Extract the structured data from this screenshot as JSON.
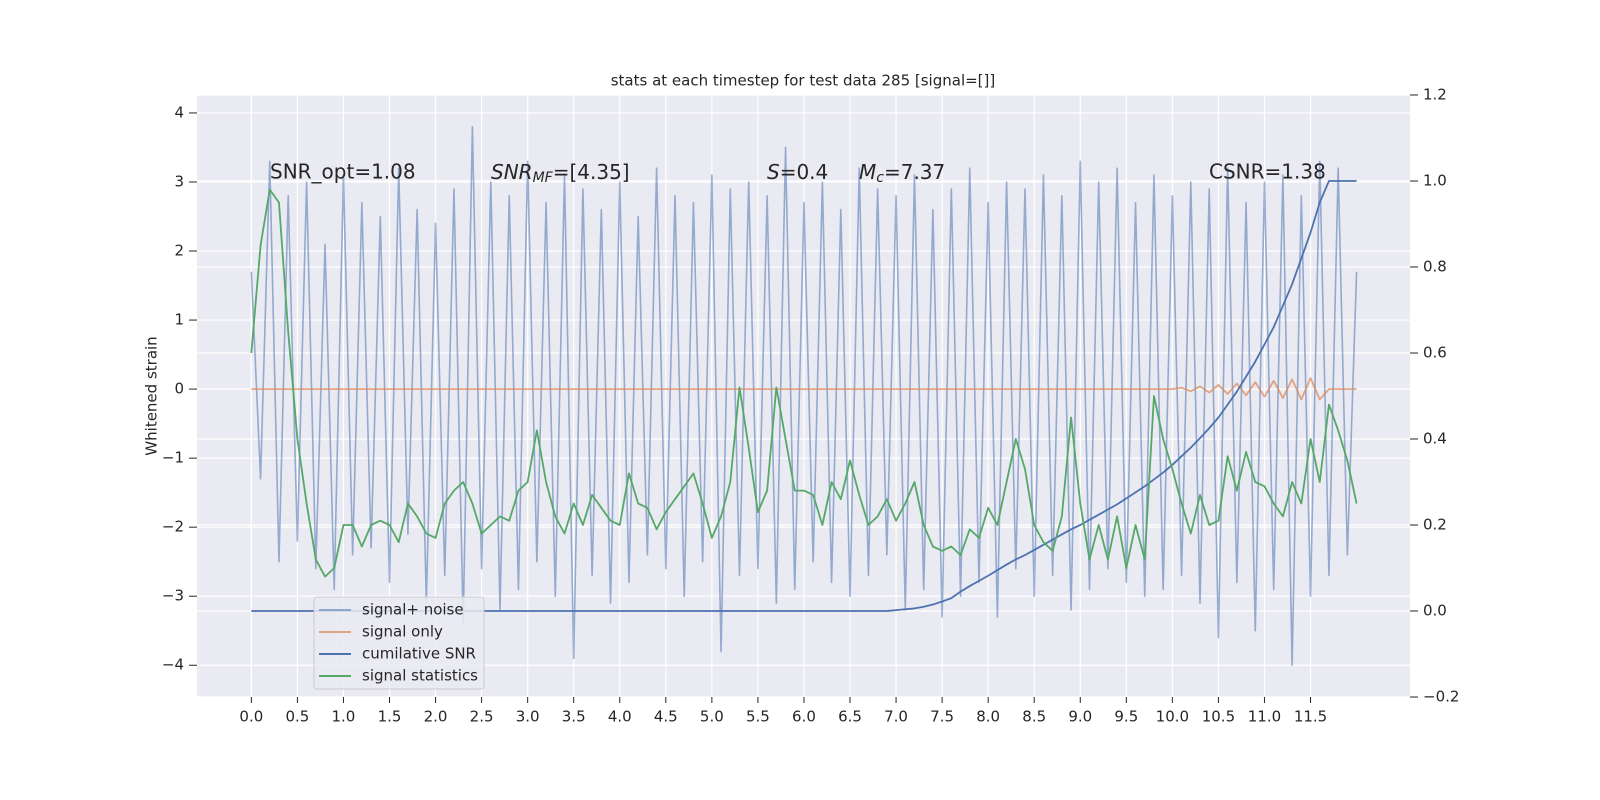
{
  "chart_data": {
    "type": "line",
    "title": "stats at each timestep for test data 285 [signal=[]]",
    "ylabel": "Whitened strain",
    "annotations": [
      "SNR_opt=1.08",
      [
        "SNR",
        "MF",
        "=[4.35]"
      ],
      [
        "S",
        "=0.4"
      ],
      [
        "M",
        "c",
        "=7.37"
      ],
      "CSNR=1.38"
    ],
    "xlim": [
      -0.59,
      12.58
    ],
    "ylim": [
      -4.46,
      4.26
    ],
    "y2lim": [
      -0.2,
      1.2
    ],
    "xticks": [
      {
        "value": 0,
        "label": "0.0"
      },
      0.5,
      {
        "value": 1,
        "label": "1.0"
      },
      1.5,
      {
        "value": 2,
        "label": "2.0"
      },
      2.5,
      {
        "value": 3,
        "label": "3.0"
      },
      3.5,
      {
        "value": 4,
        "label": "4.0"
      },
      4.5,
      {
        "value": 5,
        "label": "5.0"
      },
      5.5,
      {
        "value": 6,
        "label": "6.0"
      },
      6.5,
      {
        "value": 7,
        "label": "7.0"
      },
      7.5,
      {
        "value": 8,
        "label": "8.0"
      },
      8.5,
      {
        "value": 9,
        "label": "9.0"
      },
      9.5,
      {
        "value": 10,
        "label": "10.0"
      },
      10.5,
      {
        "value": 11,
        "label": "11.0"
      },
      11.5
    ],
    "yticks": [
      {
        "value": -4,
        "label": "−4"
      },
      {
        "value": -3,
        "label": "−3"
      },
      {
        "value": -2,
        "label": "−2"
      },
      {
        "value": -1,
        "label": "−1"
      },
      0,
      1,
      2,
      3,
      4
    ],
    "y2ticks": [
      {
        "value": -0.2,
        "label": "−0.2"
      },
      {
        "value": 0,
        "label": "0.0"
      },
      0.2,
      0.4,
      0.6,
      0.8,
      {
        "value": 1,
        "label": "1.0"
      },
      1.2
    ],
    "grid": true,
    "legend": "lower left",
    "x": [
      0,
      0.1,
      0.2,
      0.3,
      0.4,
      0.5,
      0.6,
      0.7,
      0.8,
      0.9,
      1.0,
      1.1,
      1.2,
      1.3,
      1.4,
      1.5,
      1.6,
      1.7,
      1.8,
      1.9,
      2.0,
      2.1,
      2.2,
      2.3,
      2.4,
      2.5,
      2.6,
      2.7,
      2.8,
      2.9,
      3.0,
      3.1,
      3.2,
      3.3,
      3.4,
      3.5,
      3.6,
      3.7,
      3.8,
      3.9,
      4.0,
      4.1,
      4.2,
      4.3,
      4.4,
      4.5,
      4.6,
      4.7,
      4.8,
      4.9,
      5.0,
      5.1,
      5.2,
      5.3,
      5.4,
      5.5,
      5.6,
      5.7,
      5.8,
      5.9,
      6.0,
      6.1,
      6.2,
      6.3,
      6.4,
      6.5,
      6.6,
      6.7,
      6.8,
      6.9,
      7.0,
      7.1,
      7.2,
      7.3,
      7.4,
      7.5,
      7.6,
      7.7,
      7.8,
      7.9,
      8.0,
      8.1,
      8.2,
      8.3,
      8.4,
      8.5,
      8.6,
      8.7,
      8.8,
      8.9,
      9.0,
      9.1,
      9.2,
      9.3,
      9.4,
      9.5,
      9.6,
      9.7,
      9.8,
      9.9,
      10.0,
      10.1,
      10.2,
      10.3,
      10.4,
      10.5,
      10.6,
      10.7,
      10.8,
      10.9,
      11.0,
      11.1,
      11.2,
      11.3,
      11.4,
      11.5,
      11.6,
      11.7,
      11.8,
      11.9,
      12.0
    ],
    "series": [
      {
        "name": "signal+ noise",
        "color": "#4c72b0",
        "opacity": 0.55,
        "values": [
          1.7,
          -1.3,
          3.3,
          -2.5,
          2.8,
          -2.2,
          3.0,
          -2.6,
          2.1,
          -2.9,
          3.1,
          -2.4,
          2.7,
          -2.3,
          2.5,
          -2.8,
          3.2,
          -2.1,
          2.6,
          -3.1,
          2.4,
          -2.7,
          2.9,
          -3.4,
          3.8,
          -2.6,
          3.0,
          -3.2,
          2.8,
          -2.9,
          3.3,
          -2.5,
          2.7,
          -3.0,
          3.1,
          -3.9,
          2.9,
          -2.7,
          2.6,
          -3.1,
          3.0,
          -2.8,
          2.5,
          -2.4,
          3.2,
          -2.6,
          2.8,
          -3.0,
          2.7,
          -2.5,
          3.1,
          -3.8,
          2.9,
          -2.7,
          3.0,
          -2.6,
          2.8,
          -3.1,
          3.5,
          -2.9,
          2.7,
          -2.5,
          3.0,
          -2.8,
          2.6,
          -3.0,
          3.2,
          -2.7,
          2.9,
          -2.4,
          2.8,
          -3.2,
          3.1,
          -2.9,
          2.6,
          -3.3,
          2.9,
          -3.0,
          3.2,
          -2.8,
          2.7,
          -3.3,
          3.0,
          -2.6,
          2.9,
          -3.0,
          3.1,
          -2.7,
          2.8,
          -3.2,
          3.3,
          -2.9,
          3.0,
          -2.6,
          3.2,
          -2.8,
          2.7,
          -3.0,
          3.1,
          -2.9,
          2.8,
          -2.7,
          3.0,
          -3.1,
          2.9,
          -3.6,
          3.2,
          -2.8,
          2.7,
          -3.5,
          3.0,
          -2.9,
          3.1,
          -4.0,
          2.8,
          -3.0,
          3.3,
          -2.7,
          3.2,
          -2.4,
          1.7
        ]
      },
      {
        "name": "signal only",
        "color": "#dd8452",
        "opacity": 0.7,
        "values": [
          0,
          0,
          0,
          0,
          0,
          0,
          0,
          0,
          0,
          0,
          0,
          0,
          0,
          0,
          0,
          0,
          0,
          0,
          0,
          0,
          0,
          0,
          0,
          0,
          0,
          0,
          0,
          0,
          0,
          0,
          0,
          0,
          0,
          0,
          0,
          0,
          0,
          0,
          0,
          0,
          0,
          0,
          0,
          0,
          0,
          0,
          0,
          0,
          0,
          0,
          0,
          0,
          0,
          0,
          0,
          0,
          0,
          0,
          0,
          0,
          0,
          0,
          0,
          0,
          0,
          0,
          0,
          0,
          0,
          0,
          0,
          0,
          0,
          0,
          0,
          0,
          0,
          0,
          0,
          0,
          0,
          0,
          0,
          0,
          0,
          0,
          0,
          0,
          0,
          0,
          0,
          0,
          0,
          0,
          0,
          0,
          0,
          0,
          0,
          0,
          0,
          0.02,
          -0.03,
          0.04,
          -0.05,
          0.06,
          -0.07,
          0.08,
          -0.09,
          0.1,
          -0.11,
          0.12,
          -0.13,
          0.14,
          -0.15,
          0.16,
          -0.15,
          0,
          0,
          0,
          0
        ]
      },
      {
        "name": "cumilative SNR",
        "color": "#4c72b0",
        "opacity": 1,
        "axis": "y2",
        "values": [
          0,
          0,
          0,
          0,
          0,
          0,
          0,
          0,
          0,
          0,
          0,
          0,
          0,
          0,
          0,
          0,
          0,
          0,
          0,
          0,
          0,
          0,
          0,
          0,
          0,
          0,
          0,
          0,
          0,
          0,
          0,
          0,
          0,
          0,
          0,
          0,
          0,
          0,
          0,
          0,
          0,
          0,
          0,
          0,
          0,
          0,
          0,
          0,
          0,
          0,
          0,
          0,
          0,
          0,
          0,
          0,
          0,
          0,
          0,
          0,
          0,
          0,
          0,
          0,
          0,
          0,
          0,
          0,
          0,
          0,
          0.002,
          0.004,
          0.006,
          0.01,
          0.015,
          0.022,
          0.03,
          0.045,
          0.058,
          0.07,
          0.082,
          0.095,
          0.108,
          0.12,
          0.13,
          0.142,
          0.154,
          0.166,
          0.178,
          0.19,
          0.2,
          0.212,
          0.224,
          0.236,
          0.248,
          0.262,
          0.276,
          0.29,
          0.306,
          0.322,
          0.34,
          0.36,
          0.38,
          0.402,
          0.425,
          0.45,
          0.48,
          0.51,
          0.545,
          0.58,
          0.62,
          0.66,
          0.71,
          0.76,
          0.82,
          0.88,
          0.95,
          1.0,
          1.0,
          1.0,
          1.0
        ]
      },
      {
        "name": "signal statistics",
        "color": "#55a868",
        "opacity": 1,
        "axis": "y2",
        "values": [
          0.6,
          0.85,
          0.98,
          0.95,
          0.65,
          0.4,
          0.25,
          0.12,
          0.08,
          0.1,
          0.2,
          0.2,
          0.15,
          0.2,
          0.21,
          0.2,
          0.16,
          0.25,
          0.22,
          0.18,
          0.17,
          0.25,
          0.28,
          0.3,
          0.25,
          0.18,
          0.2,
          0.22,
          0.21,
          0.28,
          0.3,
          0.42,
          0.3,
          0.22,
          0.18,
          0.25,
          0.2,
          0.27,
          0.24,
          0.21,
          0.2,
          0.32,
          0.25,
          0.24,
          0.19,
          0.23,
          0.26,
          0.29,
          0.32,
          0.25,
          0.17,
          0.22,
          0.3,
          0.52,
          0.38,
          0.23,
          0.28,
          0.52,
          0.4,
          0.28,
          0.28,
          0.27,
          0.2,
          0.3,
          0.26,
          0.35,
          0.27,
          0.2,
          0.22,
          0.26,
          0.21,
          0.25,
          0.3,
          0.2,
          0.15,
          0.14,
          0.15,
          0.13,
          0.19,
          0.17,
          0.24,
          0.2,
          0.3,
          0.4,
          0.33,
          0.2,
          0.16,
          0.14,
          0.22,
          0.45,
          0.25,
          0.12,
          0.2,
          0.12,
          0.22,
          0.1,
          0.2,
          0.12,
          0.5,
          0.4,
          0.33,
          0.25,
          0.18,
          0.27,
          0.2,
          0.21,
          0.36,
          0.28,
          0.37,
          0.3,
          0.29,
          0.25,
          0.22,
          0.3,
          0.25,
          0.4,
          0.3,
          0.48,
          0.42,
          0.35,
          0.25
        ]
      }
    ]
  }
}
